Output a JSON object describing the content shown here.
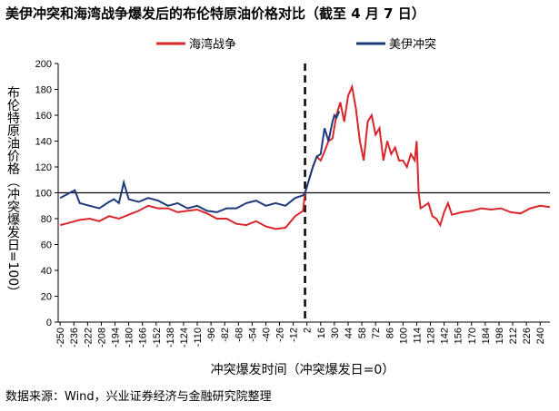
{
  "chart_data": {
    "type": "line",
    "title": "美伊冲突和海湾战争爆发后的布伦特原油价格对比（截至 4 月 7 日）",
    "y_label": "布伦特原油价格（冲突爆发日=100）",
    "x_label": "冲突爆发时间（冲突爆发日=0）",
    "source": "数据来源：Wind，兴业证券经济与金融研究院整理",
    "xlim": [
      -252,
      250
    ],
    "ylim": [
      0,
      200
    ],
    "xticks": [
      -250,
      -236,
      -222,
      -208,
      -194,
      -180,
      -166,
      -152,
      -138,
      -124,
      -110,
      -96,
      -82,
      -68,
      -54,
      -40,
      -26,
      -12,
      2,
      16,
      30,
      44,
      58,
      72,
      86,
      100,
      114,
      128,
      142,
      156,
      170,
      184,
      198,
      212,
      226,
      240
    ],
    "yticks": [
      0,
      20,
      40,
      60,
      80,
      100,
      120,
      140,
      160,
      180,
      200
    ],
    "reference_y": 100,
    "reference_x": 0,
    "series": [
      {
        "name": "海湾战争",
        "color": "#d9262b",
        "x": [
          -250,
          -240,
          -230,
          -220,
          -210,
          -200,
          -190,
          -180,
          -170,
          -160,
          -150,
          -140,
          -130,
          -120,
          -110,
          -100,
          -90,
          -80,
          -70,
          -60,
          -50,
          -40,
          -30,
          -20,
          -10,
          -2,
          0,
          4,
          8,
          12,
          16,
          20,
          24,
          28,
          32,
          36,
          40,
          44,
          48,
          52,
          56,
          60,
          64,
          68,
          72,
          76,
          80,
          84,
          88,
          92,
          96,
          100,
          104,
          108,
          112,
          114,
          116,
          118,
          122,
          126,
          130,
          134,
          138,
          142,
          146,
          150,
          160,
          170,
          180,
          190,
          200,
          210,
          220,
          230,
          240,
          250
        ],
        "values": [
          75,
          77,
          79,
          80,
          78,
          82,
          80,
          83,
          86,
          90,
          88,
          88,
          85,
          86,
          87,
          84,
          80,
          80,
          76,
          75,
          78,
          74,
          72,
          73,
          82,
          86,
          100,
          110,
          120,
          128,
          125,
          132,
          140,
          142,
          160,
          170,
          155,
          175,
          182,
          165,
          140,
          125,
          155,
          160,
          145,
          150,
          125,
          140,
          130,
          135,
          125,
          125,
          120,
          130,
          125,
          140,
          100,
          88,
          90,
          92,
          82,
          80,
          75,
          85,
          92,
          83,
          85,
          86,
          88,
          87,
          88,
          85,
          84,
          88,
          90,
          89
        ]
      },
      {
        "name": "美伊冲突",
        "color": "#1f3a7a",
        "x": [
          -250,
          -240,
          -235,
          -230,
          -220,
          -210,
          -200,
          -195,
          -190,
          -185,
          -180,
          -170,
          -160,
          -150,
          -140,
          -130,
          -120,
          -110,
          -100,
          -90,
          -80,
          -70,
          -60,
          -50,
          -40,
          -30,
          -20,
          -10,
          -2,
          0,
          4,
          8,
          12,
          16,
          20,
          24,
          28,
          30,
          32,
          35
        ],
        "values": [
          96,
          100,
          102,
          92,
          90,
          88,
          93,
          95,
          92,
          108,
          95,
          93,
          96,
          94,
          90,
          92,
          88,
          90,
          86,
          85,
          88,
          88,
          92,
          94,
          90,
          92,
          90,
          96,
          98,
          100,
          110,
          120,
          128,
          130,
          150,
          140,
          155,
          160,
          158,
          163
        ]
      }
    ]
  }
}
